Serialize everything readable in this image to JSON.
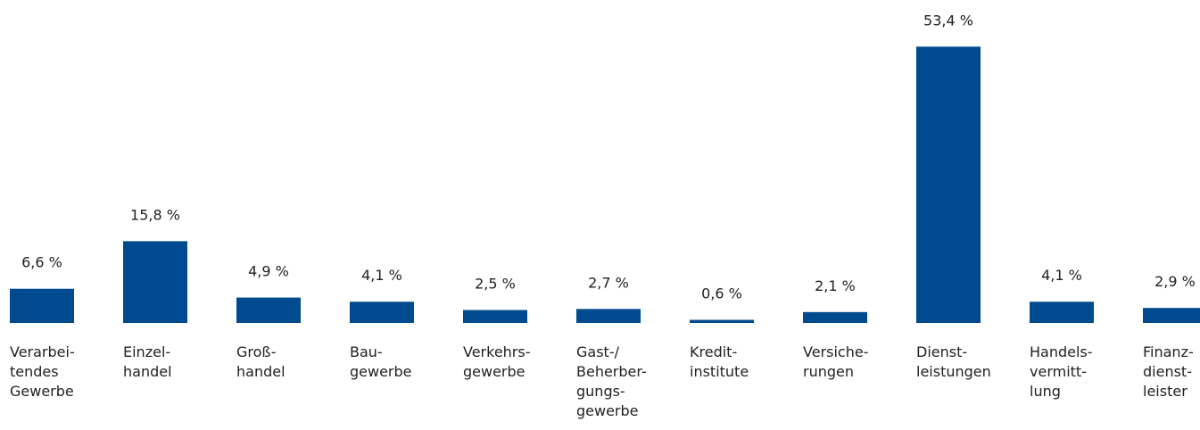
{
  "chart_data": {
    "type": "bar",
    "categories": [
      "Verarbei-\ntendes\nGewerbe",
      "Einzel-\nhandel",
      "Groß-\nhandel",
      "Bau-\ngewerbe",
      "Verkehrs-\ngewerbe",
      "Gast-/\nBeherber-\ngungs-\ngewerbe",
      "Kredit-\ninstitute",
      "Versiche-\nrungen",
      "Dienst-\nleistungen",
      "Handels-\nvermitt-\nlung",
      "Finanz-\ndienst-\nleister"
    ],
    "values": [
      6.6,
      15.8,
      4.9,
      4.1,
      2.5,
      2.7,
      0.6,
      2.1,
      53.4,
      4.1,
      2.9
    ],
    "value_labels": [
      "6,6 %",
      "15,8 %",
      "4,9 %",
      "4,1 %",
      "2,5 %",
      "2,7 %",
      "0,6 %",
      "2,1 %",
      "53,4 %",
      "4,1 %",
      "2,9 %"
    ],
    "color": "#004a8f"
  }
}
